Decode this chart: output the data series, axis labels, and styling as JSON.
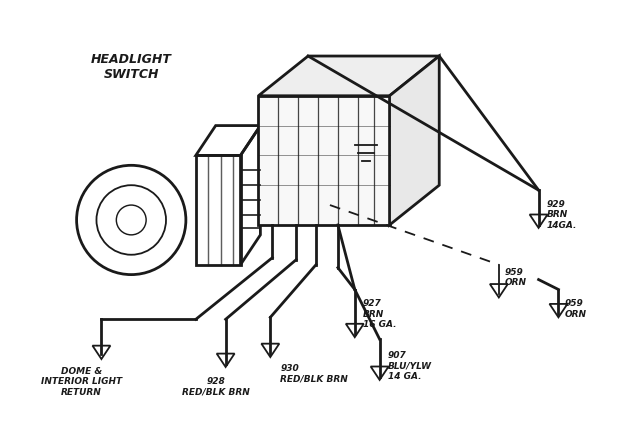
{
  "bg_color": "#ffffff",
  "line_color": "#1a1a1a",
  "lw_main": 2.0,
  "lw_thin": 1.3,
  "switch_label": "HEADLIGHT\nSWITCH",
  "wire_labels": {
    "dome": "DOME &\nINTERIOR LIGHT\nRETURN",
    "928": "928\nRED/BLK BRN",
    "930": "930\nRED/BLK BRN",
    "927": "927\nBRN\n16 GA.",
    "907": "907\nBLU/YLW\n14 GA.",
    "929": "929\nBRN\n14GA.",
    "959": "959\nORN"
  }
}
